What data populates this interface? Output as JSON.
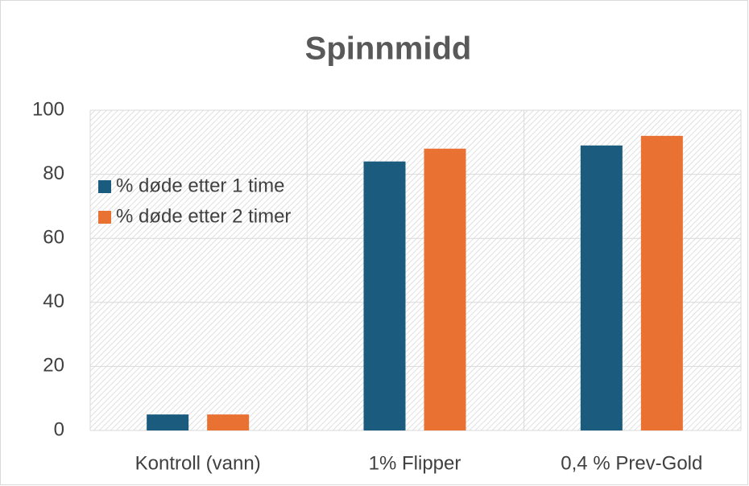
{
  "chart_data": {
    "type": "bar",
    "title": "Spinnmidd",
    "categories": [
      "Kontroll (vann)",
      "1% Flipper",
      "0,4 % Prev-Gold"
    ],
    "series": [
      {
        "name": "% døde etter 1 time",
        "color": "#1a5b7e",
        "values": [
          5,
          84,
          89
        ]
      },
      {
        "name": "% døde etter 2 timer",
        "color": "#e97132",
        "values": [
          5,
          88,
          92
        ]
      }
    ],
    "ylim": [
      0,
      100
    ],
    "yticks": [
      0,
      20,
      40,
      60,
      80,
      100
    ],
    "grid": true,
    "legend_position": "upper-left"
  }
}
